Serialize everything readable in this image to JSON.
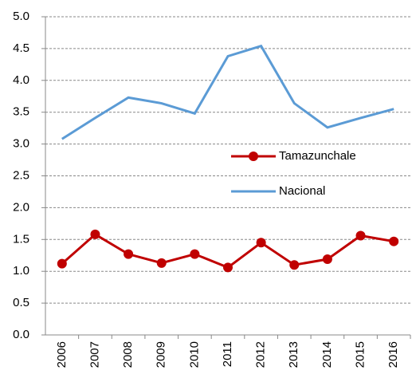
{
  "chart_data": {
    "type": "line",
    "categories": [
      "2006",
      "2007",
      "2008",
      "2009",
      "2010",
      "2011",
      "2012",
      "2013",
      "2014",
      "2015",
      "2016"
    ],
    "series": [
      {
        "name": "Tamazunchale",
        "color": "#c00000",
        "marker": "circle",
        "values": [
          1.12,
          1.58,
          1.27,
          1.13,
          1.27,
          1.06,
          1.45,
          1.1,
          1.19,
          1.56,
          1.47
        ]
      },
      {
        "name": "Nacional",
        "color": "#5b9bd5",
        "marker": "none",
        "values": [
          3.08,
          3.41,
          3.73,
          3.64,
          3.48,
          4.38,
          4.54,
          3.64,
          3.26,
          3.41,
          3.55
        ]
      }
    ],
    "ylim": [
      0,
      5
    ],
    "yticks": [
      {
        "value": 0,
        "label": "0.0"
      },
      {
        "value": 0.5,
        "label": "0.5"
      },
      {
        "value": 1,
        "label": "1.0"
      },
      {
        "value": 1.5,
        "label": "1.5"
      },
      {
        "value": 2,
        "label": "2.0"
      },
      {
        "value": 2.5,
        "label": "2.5"
      },
      {
        "value": 3,
        "label": "3.0"
      },
      {
        "value": 3.5,
        "label": "3.5"
      },
      {
        "value": 4,
        "label": "4.0"
      },
      {
        "value": 4.5,
        "label": "4.5"
      },
      {
        "value": 5,
        "label": "5.0"
      }
    ],
    "grid": true,
    "legend": "center"
  }
}
